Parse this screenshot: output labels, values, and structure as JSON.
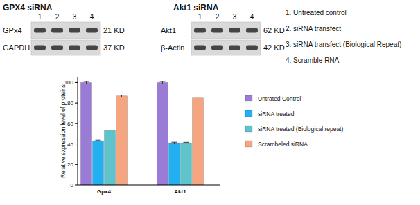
{
  "chart_data": {
    "type": "bar",
    "y_label": "Relative expression level of proteins",
    "categories": [
      "Gpx4",
      "Akt1"
    ],
    "series": [
      {
        "name": "Untrated Control",
        "color": "#9a7bd6",
        "values": [
          100,
          100
        ],
        "errors": [
          1,
          1
        ]
      },
      {
        "name": "siRNA treated",
        "color": "#22b0f2",
        "values": [
          43,
          41
        ],
        "errors": [
          0.6,
          0.6
        ]
      },
      {
        "name": "siRNA treated (Biological repeat)",
        "color": "#5ec3cb",
        "values": [
          53,
          41
        ],
        "errors": [
          0.5,
          0.5
        ]
      },
      {
        "name": "Scrambeled siRNA",
        "color": "#f5a57f",
        "values": [
          87,
          85
        ],
        "errors": [
          0.8,
          0.8
        ]
      }
    ],
    "ylim": [
      0,
      105
    ],
    "yticks": [
      0,
      20,
      40,
      60,
      80,
      100
    ],
    "grid": false,
    "legend": "right"
  },
  "blots": [
    {
      "title": "GPX4 siRNA",
      "lanes": [
        1,
        2,
        3,
        4
      ],
      "rows": [
        {
          "label": "GPx4",
          "size": "21 KD"
        },
        {
          "label": "GAPDH",
          "size": "37 KD"
        }
      ]
    },
    {
      "title": "Akt1 siRNA",
      "lanes": [
        1,
        2,
        3,
        4
      ],
      "rows": [
        {
          "label": "Akt1",
          "size": "62 KD"
        },
        {
          "label": "β-Actin",
          "size": "42 KD"
        }
      ]
    }
  ],
  "lane_key": [
    "1. Untreated control",
    "2. siRNA transfect",
    "3. siRNA transfect (Biological Repeat)",
    "4. Scramble RNA"
  ]
}
